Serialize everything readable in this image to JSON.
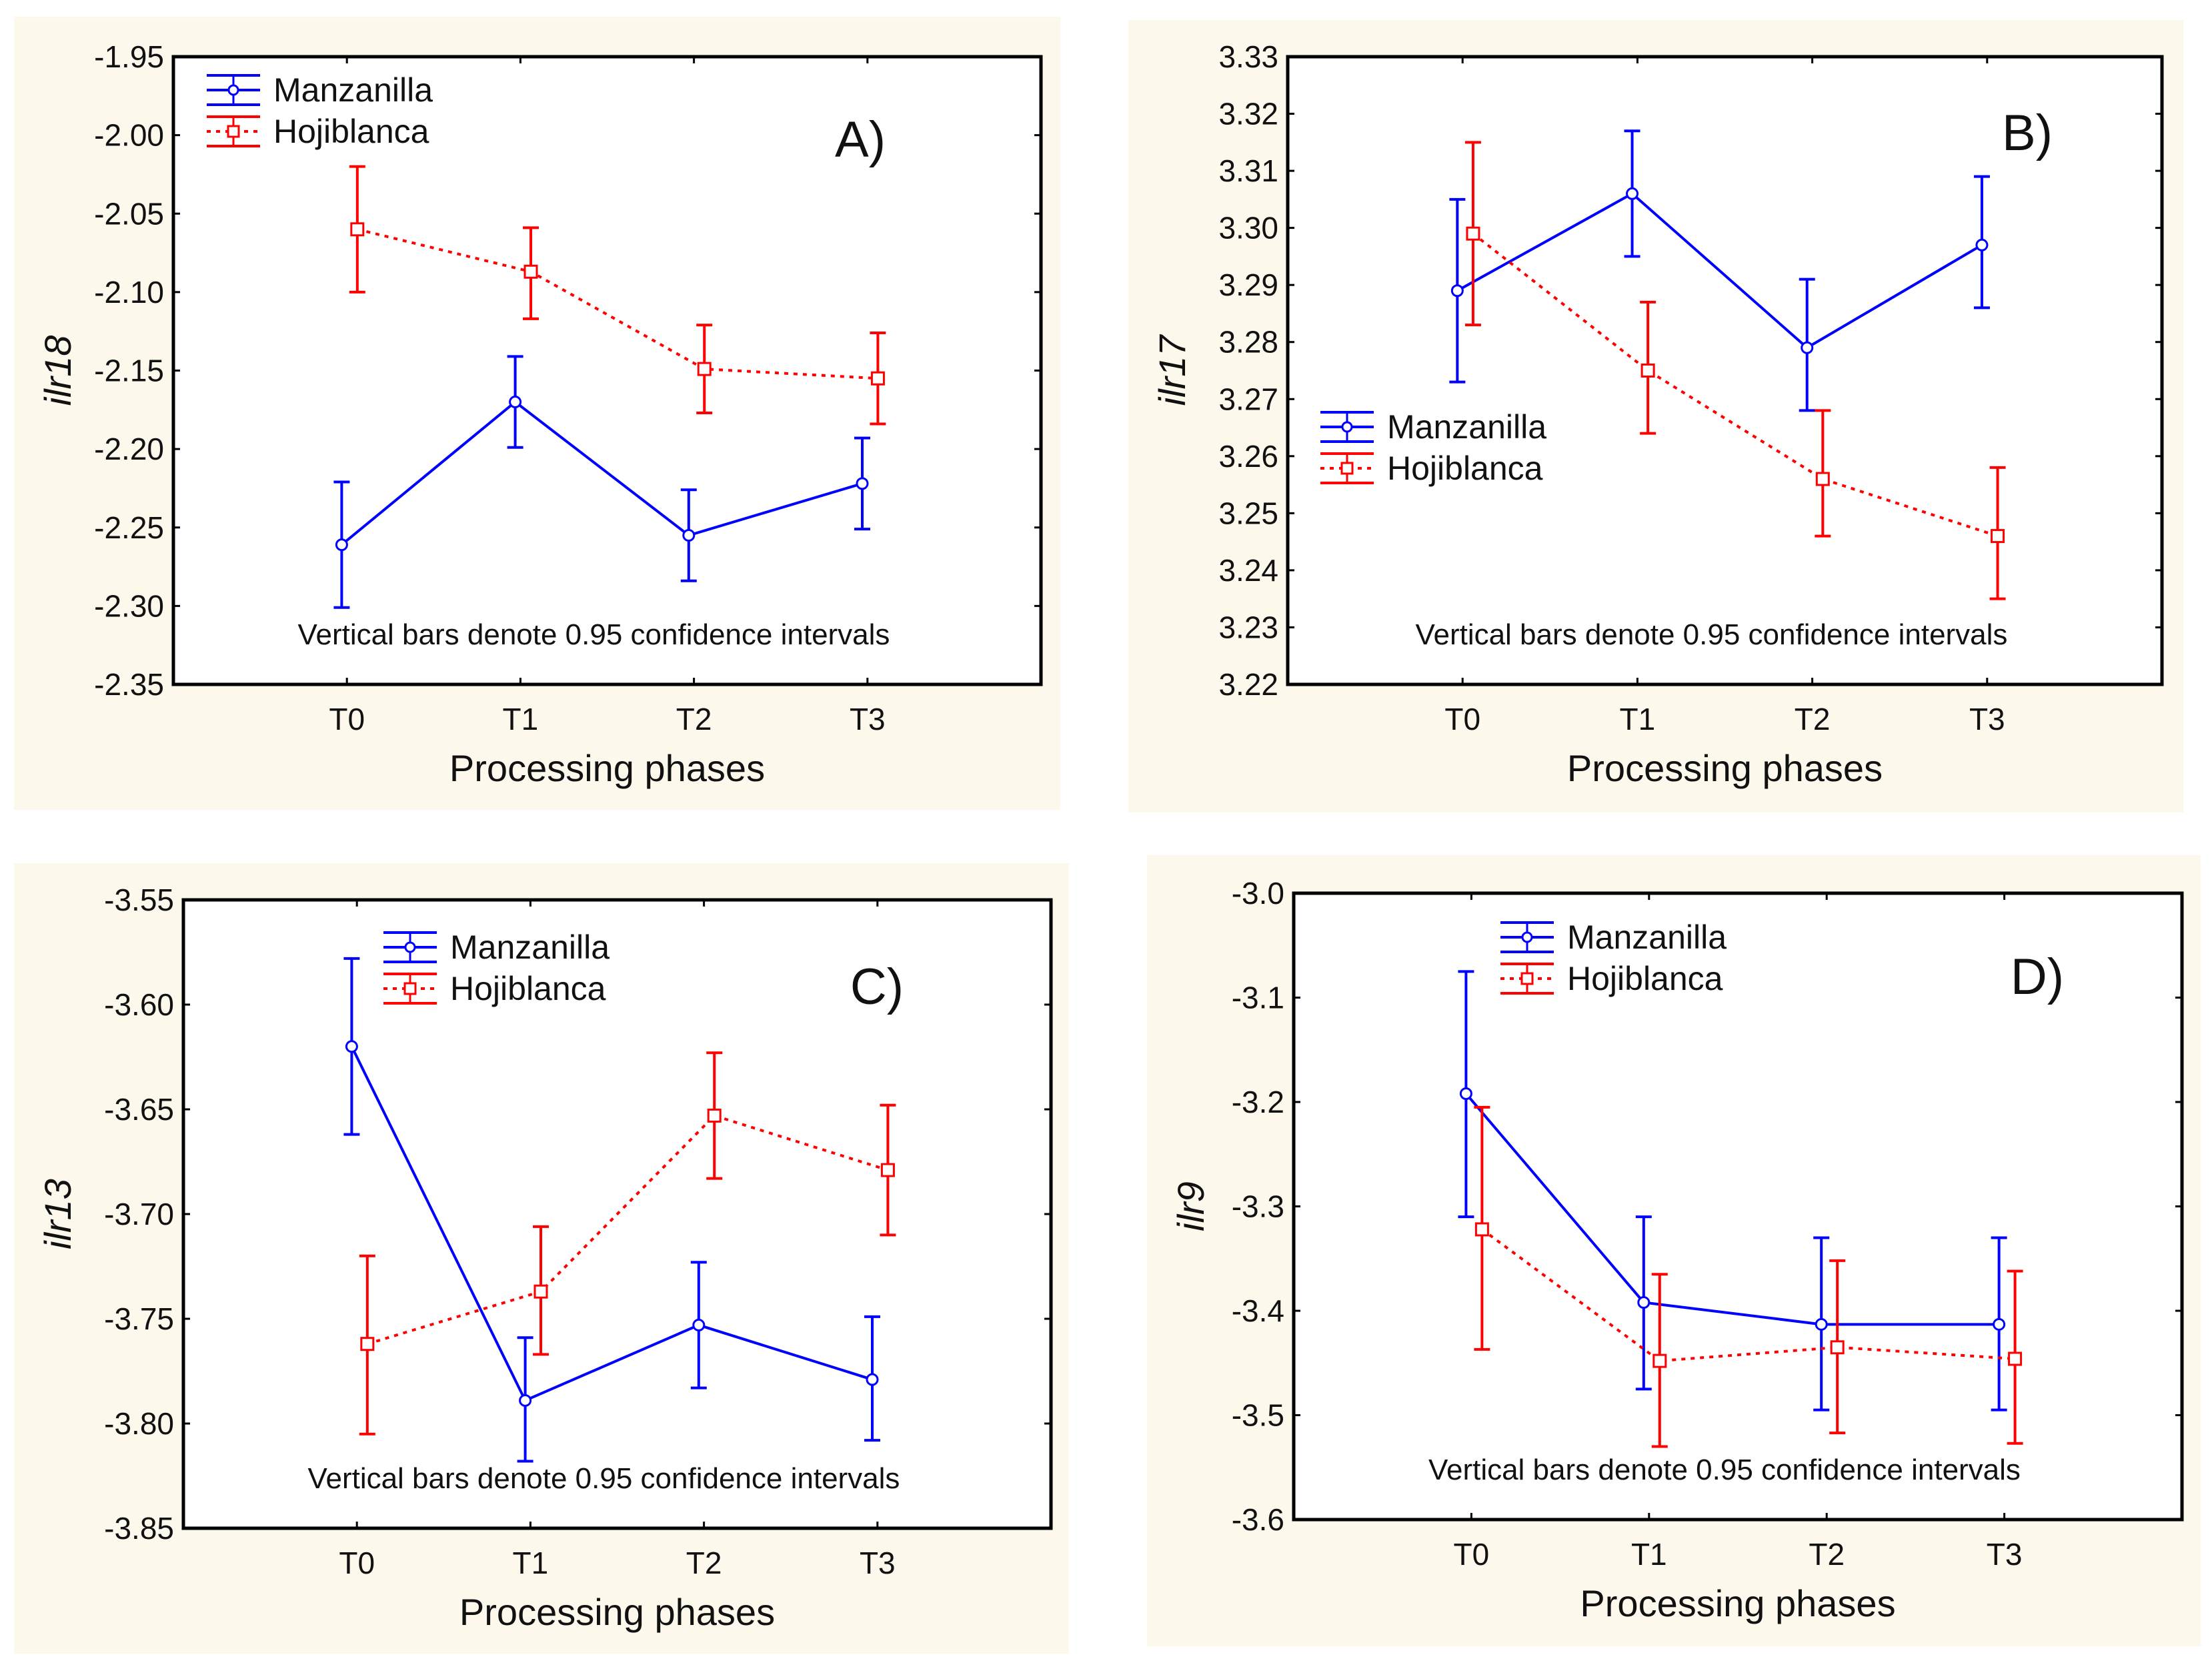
{
  "colors": {
    "manzanilla": "#0000ff",
    "hojiblanca": "#ff0000",
    "panel_bg": "#fdf8ec",
    "plot_bg": "#ffffff"
  },
  "chart_data": [
    {
      "type": "line",
      "panel_label": "A)",
      "categories": [
        "T0",
        "T1",
        "T2",
        "T3"
      ],
      "xlabel": "Processing phases",
      "ylabel": "ilr18",
      "ylim": [
        -2.35,
        -1.95
      ],
      "yticks": [
        "-1.95",
        "-2.00",
        "-2.05",
        "-2.10",
        "-2.15",
        "-2.20",
        "-2.25",
        "-2.30",
        "-2.35"
      ],
      "note": "Vertical bars denote 0.95 confidence intervals",
      "legend_position": "top-left",
      "series": [
        {
          "name": "Manzanilla",
          "values": [
            -2.261,
            -2.17,
            -2.255,
            -2.222
          ],
          "ci_low": [
            -2.301,
            -2.199,
            -2.284,
            -2.251
          ],
          "ci_high": [
            -2.221,
            -2.141,
            -2.226,
            -2.193
          ]
        },
        {
          "name": "Hojiblanca",
          "values": [
            -2.06,
            -2.087,
            -2.149,
            -2.155
          ],
          "ci_low": [
            -2.1,
            -2.117,
            -2.177,
            -2.184
          ],
          "ci_high": [
            -2.02,
            -2.059,
            -2.121,
            -2.126
          ]
        }
      ]
    },
    {
      "type": "line",
      "panel_label": "B)",
      "categories": [
        "T0",
        "T1",
        "T2",
        "T3"
      ],
      "xlabel": "Processing phases",
      "ylabel": "ilr17",
      "ylim": [
        3.22,
        3.33
      ],
      "yticks": [
        "3.33",
        "3.32",
        "3.31",
        "3.30",
        "3.29",
        "3.28",
        "3.27",
        "3.26",
        "3.25",
        "3.24",
        "3.23",
        "3.22"
      ],
      "note": "Vertical bars denote 0.95 confidence intervals",
      "legend_position": "middle-left",
      "series": [
        {
          "name": "Manzanilla",
          "values": [
            3.289,
            3.306,
            3.279,
            3.297
          ],
          "ci_low": [
            3.273,
            3.295,
            3.268,
            3.286
          ],
          "ci_high": [
            3.305,
            3.317,
            3.291,
            3.309
          ]
        },
        {
          "name": "Hojiblanca",
          "values": [
            3.299,
            3.275,
            3.256,
            3.246
          ],
          "ci_low": [
            3.283,
            3.264,
            3.246,
            3.235
          ],
          "ci_high": [
            3.315,
            3.287,
            3.268,
            3.258
          ]
        }
      ]
    },
    {
      "type": "line",
      "panel_label": "C)",
      "categories": [
        "T0",
        "T1",
        "T2",
        "T3"
      ],
      "xlabel": "Processing phases",
      "ylabel": "ilr13",
      "ylim": [
        -3.85,
        -3.55
      ],
      "yticks": [
        "-3.55",
        "-3.60",
        "-3.65",
        "-3.70",
        "-3.75",
        "-3.80",
        "-3.85"
      ],
      "note": "Vertical bars denote 0.95 confidence intervals",
      "legend_position": "top-center",
      "series": [
        {
          "name": "Manzanilla",
          "values": [
            -3.62,
            -3.789,
            -3.753,
            -3.779
          ],
          "ci_low": [
            -3.662,
            -3.818,
            -3.783,
            -3.808
          ],
          "ci_high": [
            -3.578,
            -3.759,
            -3.723,
            -3.749
          ]
        },
        {
          "name": "Hojiblanca",
          "values": [
            -3.762,
            -3.737,
            -3.653,
            -3.679
          ],
          "ci_low": [
            -3.805,
            -3.767,
            -3.683,
            -3.71
          ],
          "ci_high": [
            -3.72,
            -3.706,
            -3.623,
            -3.648
          ]
        }
      ]
    },
    {
      "type": "line",
      "panel_label": "D)",
      "categories": [
        "T0",
        "T1",
        "T2",
        "T3"
      ],
      "xlabel": "Processing phases",
      "ylabel": "ilr9",
      "ylim": [
        -3.6,
        -3.0
      ],
      "yticks": [
        "-3.0",
        "-3.1",
        "-3.2",
        "-3.3",
        "-3.4",
        "-3.5",
        "-3.6"
      ],
      "note": "Vertical bars denote 0.95 confidence intervals",
      "legend_position": "top-center",
      "series": [
        {
          "name": "Manzanilla",
          "values": [
            -3.192,
            -3.392,
            -3.413,
            -3.413
          ],
          "ci_low": [
            -3.31,
            -3.475,
            -3.495,
            -3.495
          ],
          "ci_high": [
            -3.075,
            -3.31,
            -3.33,
            -3.33
          ]
        },
        {
          "name": "Hojiblanca",
          "values": [
            -3.322,
            -3.448,
            -3.435,
            -3.446
          ],
          "ci_low": [
            -3.437,
            -3.53,
            -3.517,
            -3.527
          ],
          "ci_high": [
            -3.205,
            -3.365,
            -3.352,
            -3.362
          ]
        }
      ]
    }
  ]
}
